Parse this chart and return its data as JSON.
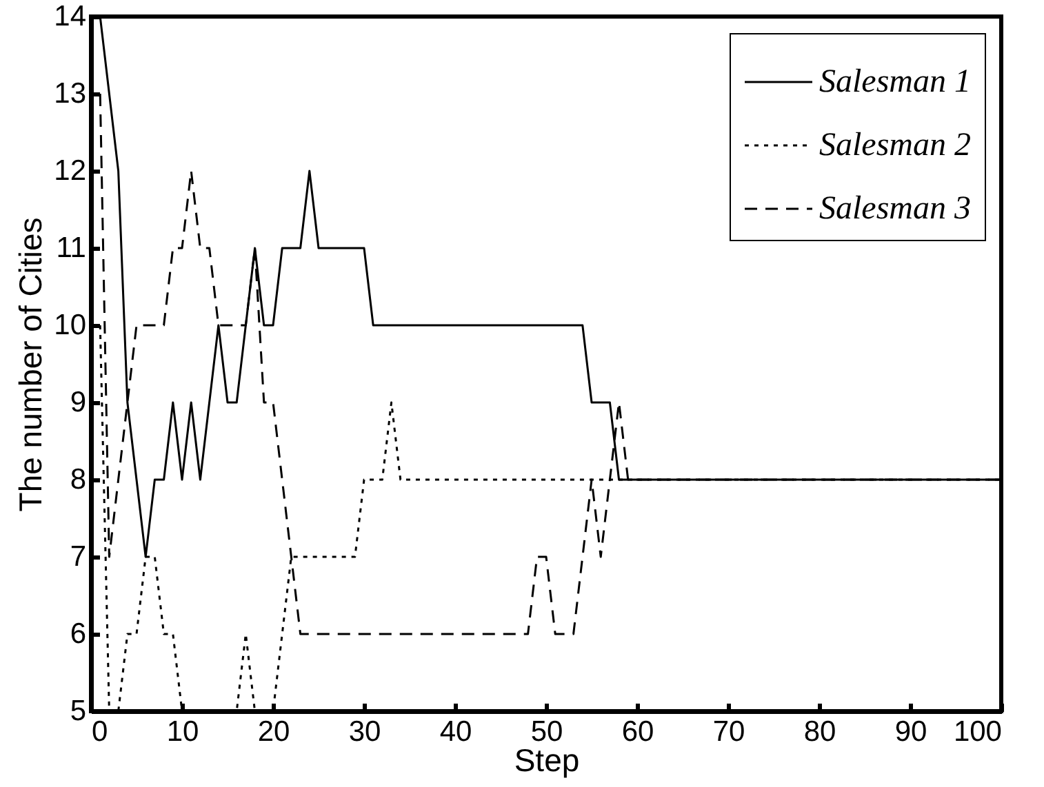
{
  "chart_data": {
    "type": "line",
    "xlabel": "Step",
    "ylabel": "The number of Cities",
    "x": [
      0,
      1,
      2,
      3,
      4,
      5,
      6,
      7,
      8,
      9,
      10,
      11,
      12,
      13,
      14,
      15,
      16,
      17,
      18,
      19,
      20,
      21,
      22,
      23,
      24,
      25,
      26,
      27,
      28,
      29,
      30,
      31,
      32,
      33,
      34,
      35,
      36,
      37,
      38,
      39,
      40,
      41,
      42,
      43,
      44,
      45,
      46,
      47,
      48,
      49,
      50,
      51,
      52,
      53,
      54,
      55,
      56,
      57,
      58,
      59,
      60,
      61,
      62,
      63,
      64,
      65,
      66,
      67,
      68,
      69,
      70,
      71,
      72,
      73,
      74,
      75,
      76,
      77,
      78,
      79,
      80,
      81,
      82,
      83,
      84,
      85,
      86,
      87,
      88,
      89,
      90,
      91,
      92,
      93,
      94,
      95,
      96,
      97,
      98,
      99,
      100
    ],
    "series": [
      {
        "name": "Salesman 1",
        "color": "#000000",
        "line_style": "solid",
        "values": [
          14,
          14,
          13,
          12,
          9,
          8,
          7,
          8,
          8,
          9,
          8,
          9,
          8,
          9,
          10,
          9,
          9,
          10,
          11,
          10,
          10,
          11,
          11,
          11,
          12,
          11,
          11,
          11,
          11,
          11,
          11,
          10,
          10,
          10,
          10,
          10,
          10,
          10,
          10,
          10,
          10,
          10,
          10,
          10,
          10,
          10,
          10,
          10,
          10,
          10,
          10,
          10,
          10,
          10,
          10,
          9,
          9,
          9,
          8,
          8,
          8,
          8,
          8,
          8,
          8,
          8,
          8,
          8,
          8,
          8,
          8,
          8,
          8,
          8,
          8,
          8,
          8,
          8,
          8,
          8,
          8,
          8,
          8,
          8,
          8,
          8,
          8,
          8,
          8,
          8,
          8,
          8,
          8,
          8,
          8,
          8,
          8,
          8,
          8,
          8,
          8
        ]
      },
      {
        "name": "Salesman 2",
        "color": "#000000",
        "line_style": "dotted",
        "values": [
          null,
          10,
          5,
          5,
          6,
          6,
          7,
          7,
          6,
          6,
          5,
          5,
          5,
          5,
          5,
          5,
          5,
          6,
          5,
          5,
          5,
          6,
          7,
          7,
          7,
          7,
          7,
          7,
          7,
          7,
          8,
          8,
          8,
          9,
          8,
          8,
          8,
          8,
          8,
          8,
          8,
          8,
          8,
          8,
          8,
          8,
          8,
          8,
          8,
          8,
          8,
          8,
          8,
          8,
          8,
          8,
          8,
          8,
          8,
          8,
          8,
          8,
          8,
          8,
          8,
          8,
          8,
          8,
          8,
          8,
          8,
          8,
          8,
          8,
          8,
          8,
          8,
          8,
          8,
          8,
          8,
          8,
          8,
          8,
          8,
          8,
          8,
          8,
          8,
          8,
          8,
          8,
          8,
          8,
          8,
          8,
          8,
          8,
          8,
          8,
          8
        ]
      },
      {
        "name": "Salesman 3",
        "color": "#000000",
        "line_style": "dashed",
        "values": [
          null,
          13,
          7,
          8,
          9,
          10,
          10,
          10,
          10,
          11,
          11,
          12,
          11,
          11,
          10,
          10,
          10,
          10,
          11,
          9,
          9,
          8,
          7,
          6,
          6,
          6,
          6,
          6,
          6,
          6,
          6,
          6,
          6,
          6,
          6,
          6,
          6,
          6,
          6,
          6,
          6,
          6,
          6,
          6,
          6,
          6,
          6,
          6,
          6,
          7,
          7,
          6,
          6,
          6,
          7,
          8,
          7,
          8,
          9,
          8,
          8,
          8,
          8,
          8,
          8,
          8,
          8,
          8,
          8,
          8,
          8,
          8,
          8,
          8,
          8,
          8,
          8,
          8,
          8,
          8,
          8,
          8,
          8,
          8,
          8,
          8,
          8,
          8,
          8,
          8,
          8,
          8,
          8,
          8,
          8,
          8,
          8,
          8,
          8,
          8,
          8
        ]
      }
    ],
    "xlim": [
      0,
      100
    ],
    "xticks": [
      0,
      10,
      20,
      30,
      40,
      50,
      60,
      70,
      80,
      90,
      100
    ],
    "ylim": [
      5,
      14
    ],
    "yticks": [
      5,
      6,
      7,
      8,
      9,
      10,
      11,
      12,
      13,
      14
    ],
    "grid": false,
    "legend": "top right"
  }
}
